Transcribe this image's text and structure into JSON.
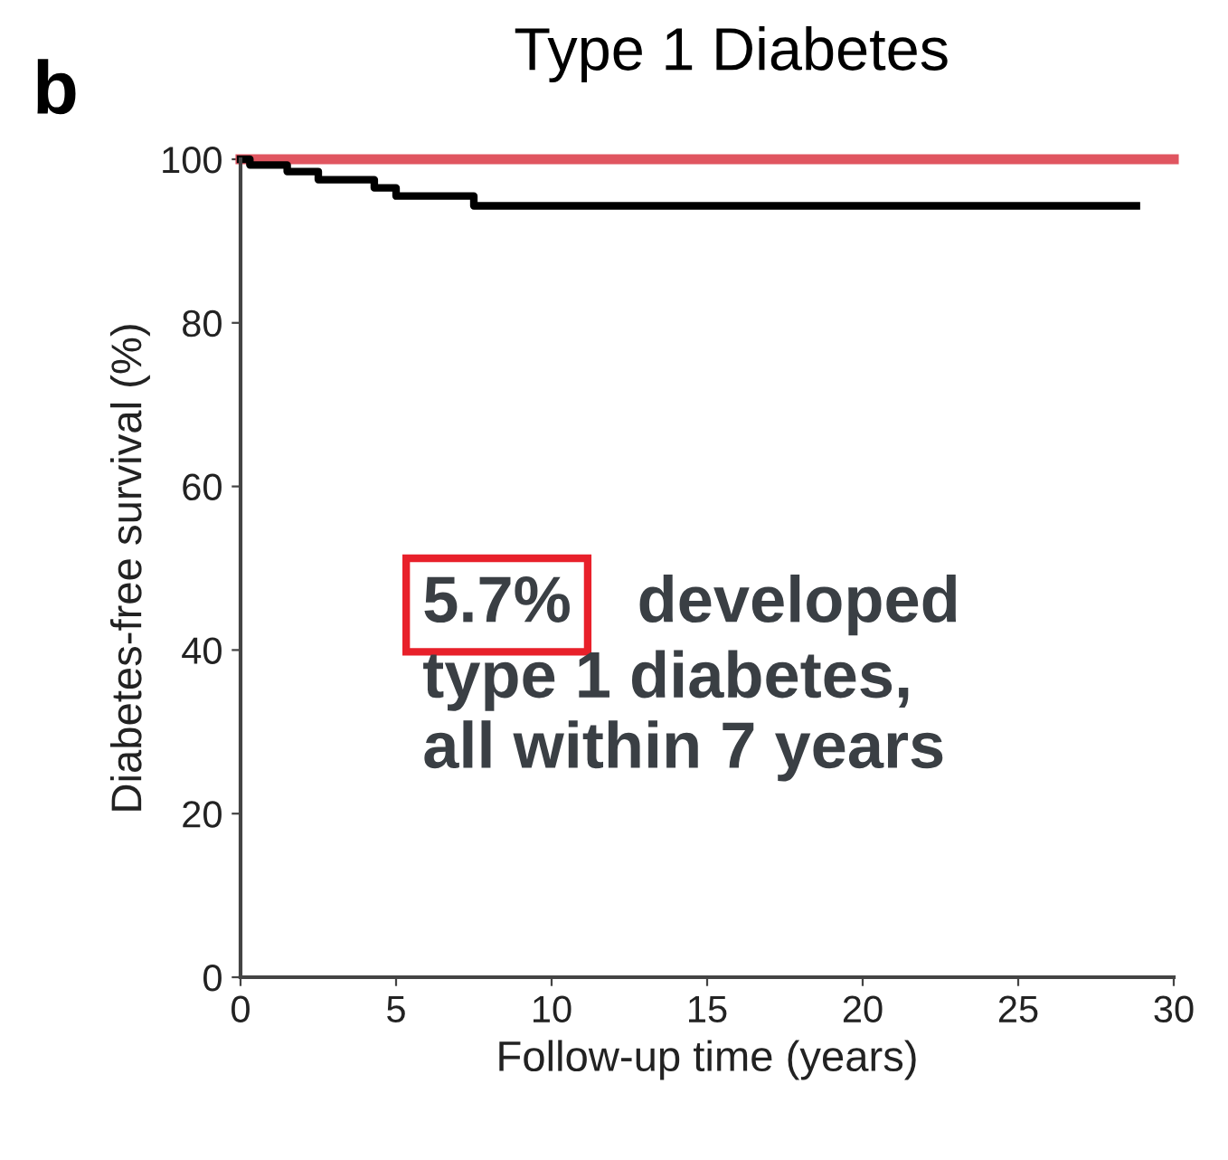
{
  "chart_data": {
    "type": "line",
    "title": "Type 1 Diabetes",
    "xlabel": "Follow-up time (years)",
    "ylabel": "Diabetes-free survival (%)",
    "annotations": [
      "b",
      "5.7%",
      "developed",
      "type 1 diabetes,\nall within 7 years"
    ],
    "series": [
      {
        "color": "#e05560",
        "x": [
          0,
          30
        ],
        "values": [
          100,
          100
        ]
      },
      {
        "type": "step",
        "color": "#000000",
        "x": [
          0,
          0.3,
          1.5,
          2.5,
          4.3,
          5,
          7.5,
          28.8
        ],
        "values": [
          100,
          99.3,
          98.5,
          97.5,
          96.5,
          95.5,
          94.3,
          94.3
        ]
      }
    ],
    "xlim": [
      0,
      30
    ],
    "xticks": [
      0,
      5,
      10,
      15,
      20,
      25,
      30
    ],
    "ylim": [
      0,
      100
    ],
    "yticks": [
      0,
      20,
      40,
      60,
      80,
      100
    ],
    "grid": false
  }
}
